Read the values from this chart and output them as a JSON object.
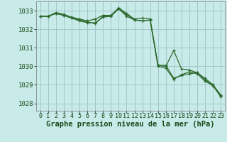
{
  "background_color": "#c8eae8",
  "plot_bg_color": "#c8eae8",
  "grid_color": "#a0c8c8",
  "line_color": "#2d6a2d",
  "marker_color": "#2d6a2d",
  "xlabel": "Graphe pression niveau de la mer (hPa)",
  "xlabel_fontsize": 7.5,
  "ylabel_fontsize": 6.5,
  "tick_fontsize": 6.0,
  "ylim": [
    1027.6,
    1033.5
  ],
  "xlim": [
    -0.5,
    23.5
  ],
  "yticks": [
    1028,
    1029,
    1030,
    1031,
    1032,
    1033
  ],
  "xticks": [
    0,
    1,
    2,
    3,
    4,
    5,
    6,
    7,
    8,
    9,
    10,
    11,
    12,
    13,
    14,
    15,
    16,
    17,
    18,
    19,
    20,
    21,
    22,
    23
  ],
  "series": [
    {
      "x": [
        0,
        1,
        2,
        3,
        4,
        5,
        6,
        7,
        8,
        9,
        10,
        11,
        12,
        13,
        14,
        15,
        16,
        17,
        18,
        19,
        20,
        21,
        22,
        23
      ],
      "y": [
        1032.7,
        1032.7,
        1032.9,
        1032.8,
        1032.65,
        1032.55,
        1032.45,
        1032.55,
        1032.75,
        1032.75,
        1033.15,
        1032.85,
        1032.55,
        1032.6,
        1032.55,
        1030.05,
        1030.0,
        1030.85,
        1029.85,
        1029.8,
        1029.65,
        1029.35,
        1029.0,
        1028.4
      ]
    },
    {
      "x": [
        0,
        1,
        2,
        3,
        4,
        5,
        6,
        7,
        8,
        9,
        10,
        11,
        12,
        13,
        14,
        15,
        16,
        17,
        18,
        19,
        20,
        21,
        22,
        23
      ],
      "y": [
        1032.7,
        1032.7,
        1032.85,
        1032.75,
        1032.6,
        1032.5,
        1032.4,
        1032.3,
        1032.7,
        1032.75,
        1033.1,
        1032.8,
        1032.5,
        1032.45,
        1032.5,
        1030.05,
        1030.05,
        1029.35,
        1029.5,
        1029.6,
        1029.65,
        1029.25,
        1029.0,
        1028.45
      ]
    },
    {
      "x": [
        0,
        1,
        2,
        3,
        4,
        5,
        6,
        7,
        8,
        9,
        10,
        11,
        12,
        13,
        14,
        15,
        16,
        17,
        18,
        19,
        20,
        21,
        22,
        23
      ],
      "y": [
        1032.7,
        1032.7,
        1032.85,
        1032.75,
        1032.6,
        1032.45,
        1032.35,
        1032.35,
        1032.65,
        1032.7,
        1033.1,
        1032.7,
        1032.5,
        1032.45,
        1032.5,
        1030.0,
        1029.9,
        1029.3,
        1029.55,
        1029.7,
        1029.6,
        1029.2,
        1028.95,
        1028.35
      ]
    }
  ]
}
